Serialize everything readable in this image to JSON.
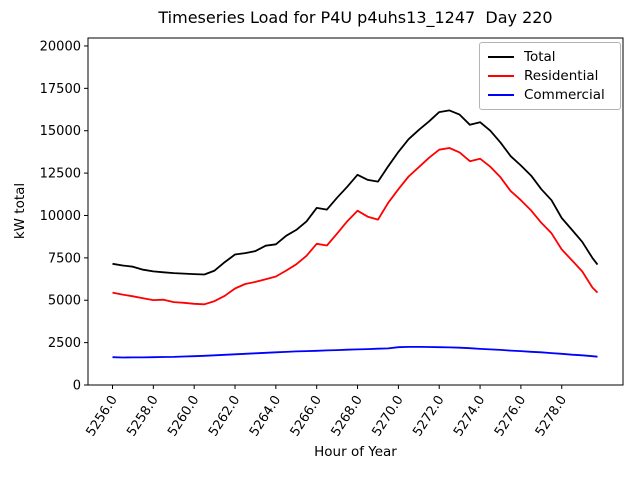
{
  "figure_title": "Timeseries Load for P4U p4uhs13_1247  Day 220",
  "chart_data": {
    "type": "line",
    "title": "Timeseries Load for P4U p4uhs13_1247  Day 220",
    "xlabel": "Hour of Year",
    "ylabel": "kW total",
    "xlim": [
      5254.8,
      5281.0
    ],
    "ylim": [
      0,
      20470
    ],
    "grid": false,
    "legend_position": "upper right",
    "x_tick_rotation": 57,
    "x_ticks": [
      5256,
      5258,
      5260,
      5262,
      5264,
      5266,
      5268,
      5270,
      5272,
      5274,
      5276,
      5278
    ],
    "x_tick_labels": [
      "5256.0",
      "5258.0",
      "5260.0",
      "5262.0",
      "5264.0",
      "5266.0",
      "5268.0",
      "5270.0",
      "5272.0",
      "5274.0",
      "5276.0",
      "5278.0"
    ],
    "y_ticks": [
      0,
      2500,
      5000,
      7500,
      10000,
      12500,
      15000,
      17500,
      20000
    ],
    "y_tick_labels": [
      "0",
      "2500",
      "5000",
      "7500",
      "10000",
      "12500",
      "15000",
      "17500",
      "20000"
    ],
    "x": [
      5256.0,
      5256.5,
      5257.0,
      5257.5,
      5258.0,
      5258.5,
      5259.0,
      5259.5,
      5260.0,
      5260.5,
      5261.0,
      5261.5,
      5262.0,
      5262.5,
      5263.0,
      5263.5,
      5264.0,
      5264.5,
      5265.0,
      5265.5,
      5266.0,
      5266.5,
      5267.0,
      5267.5,
      5268.0,
      5268.5,
      5269.0,
      5269.5,
      5270.0,
      5270.5,
      5271.0,
      5271.5,
      5272.0,
      5272.5,
      5273.0,
      5273.5,
      5274.0,
      5274.5,
      5275.0,
      5275.5,
      5276.0,
      5276.5,
      5277.0,
      5277.5,
      5278.0,
      5278.5,
      5279.0,
      5279.5,
      5279.75
    ],
    "series": [
      {
        "name": "Total",
        "color": "#000000",
        "values": [
          7150,
          7050,
          6980,
          6800,
          6700,
          6650,
          6600,
          6570,
          6540,
          6520,
          6750,
          7250,
          7700,
          7780,
          7900,
          8220,
          8300,
          8800,
          9150,
          9650,
          10450,
          10350,
          11050,
          11700,
          12400,
          12100,
          12000,
          12900,
          13750,
          14500,
          15050,
          15550,
          16100,
          16200,
          15950,
          15350,
          15500,
          15000,
          14300,
          13500,
          12950,
          12350,
          11550,
          10900,
          9850,
          9150,
          8450,
          7500,
          7100
        ]
      },
      {
        "name": "Residential",
        "color": "#ff0000",
        "values": [
          5450,
          5330,
          5230,
          5120,
          5010,
          5030,
          4890,
          4850,
          4790,
          4760,
          4950,
          5260,
          5690,
          5960,
          6080,
          6240,
          6400,
          6750,
          7120,
          7620,
          8330,
          8230,
          8930,
          9660,
          10280,
          9930,
          9760,
          10750,
          11550,
          12300,
          12850,
          13400,
          13880,
          13980,
          13720,
          13200,
          13350,
          12880,
          12250,
          11440,
          10900,
          10300,
          9570,
          8950,
          8000,
          7350,
          6700,
          5750,
          5450
        ]
      },
      {
        "name": "Commercial",
        "color": "#0000ff",
        "values": [
          1640,
          1620,
          1630,
          1630,
          1640,
          1650,
          1660,
          1680,
          1700,
          1720,
          1750,
          1780,
          1810,
          1840,
          1870,
          1900,
          1930,
          1950,
          1980,
          2000,
          2020,
          2040,
          2060,
          2080,
          2100,
          2120,
          2140,
          2160,
          2230,
          2250,
          2250,
          2240,
          2230,
          2220,
          2200,
          2170,
          2130,
          2100,
          2070,
          2030,
          2000,
          1960,
          1930,
          1880,
          1840,
          1790,
          1750,
          1700,
          1670
        ]
      }
    ]
  }
}
